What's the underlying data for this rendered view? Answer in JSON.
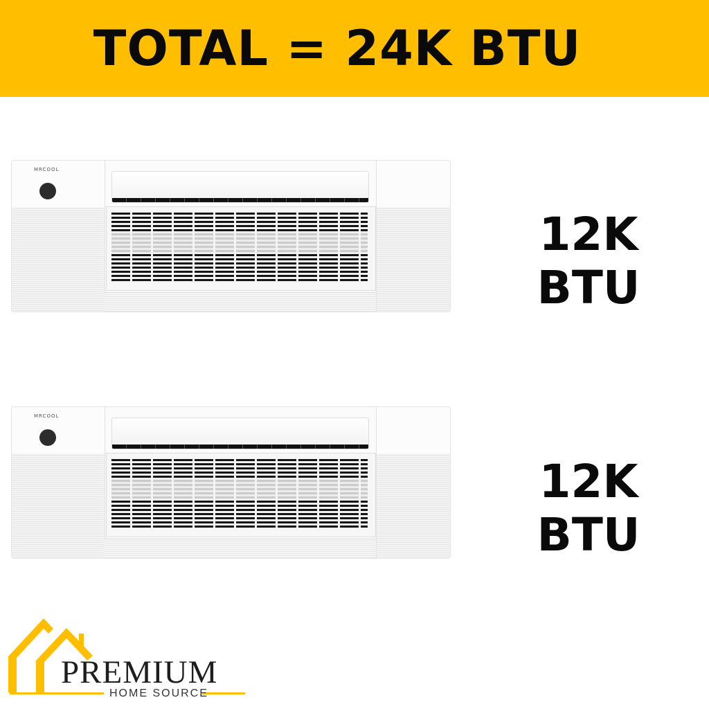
{
  "banner": {
    "title": "TOTAL = 24K BTU",
    "color": "#FFBF00"
  },
  "units": [
    {
      "brand": "MRCOOL",
      "capacity": "12K BTU"
    },
    {
      "brand": "MRCOOL",
      "capacity": "12K BTU"
    }
  ],
  "logo": {
    "name": "PREMIUM",
    "tagline": "HOME SOURCE",
    "accent": "#FFBF00",
    "icon": "house-roofs-icon"
  }
}
